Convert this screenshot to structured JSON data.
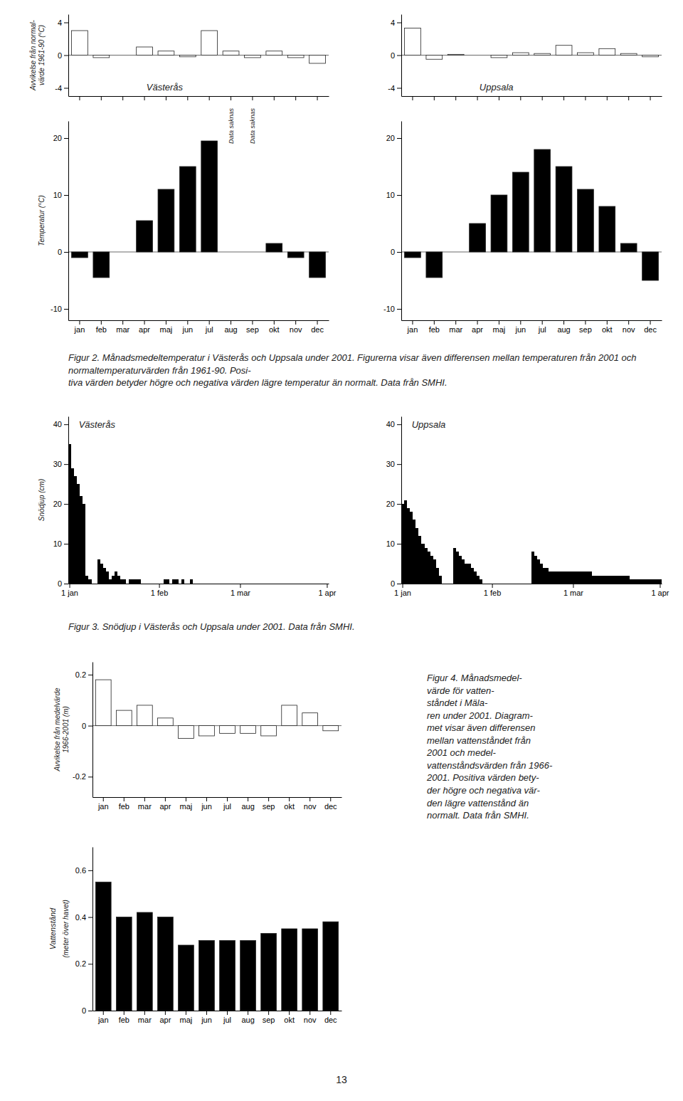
{
  "chart_data": [
    {
      "type": "bar",
      "title": "Västerås",
      "ylabel": "Avvikelse från normal-\nvärde 1961-90 (°C)",
      "categories": [
        null,
        null,
        null,
        null,
        null,
        null,
        null,
        null,
        null,
        null,
        null,
        null
      ],
      "values": [
        3.0,
        -0.3,
        0.0,
        1.0,
        0.5,
        -0.2,
        3.0,
        0.5,
        -0.3,
        0.5,
        -0.3,
        -1.0
      ],
      "color": "#ffffff",
      "ylim": [
        -5,
        5
      ],
      "yticks": [
        -4,
        0,
        4
      ]
    },
    {
      "type": "bar",
      "title": "Uppsala",
      "categories": [
        null,
        null,
        null,
        null,
        null,
        null,
        null,
        null,
        null,
        null,
        null,
        null
      ],
      "values": [
        3.3,
        -0.5,
        0.1,
        0.0,
        -0.3,
        0.3,
        0.2,
        1.2,
        0.3,
        0.8,
        0.2,
        -0.2
      ],
      "color": "#ffffff",
      "ylim": [
        -5,
        5
      ],
      "yticks": [
        -4,
        0,
        4
      ]
    },
    {
      "type": "bar",
      "ylabel": "Temperatur (°C)",
      "categories": [
        "jan",
        "feb",
        "mar",
        "apr",
        "maj",
        "jun",
        "jul",
        "aug",
        "sep",
        "okt",
        "nov",
        "dec"
      ],
      "values": [
        -1.0,
        -4.5,
        0.0,
        5.5,
        11.0,
        15.0,
        19.5,
        null,
        null,
        1.5,
        -1.0,
        -4.5
      ],
      "color": "#000000",
      "ylim": [
        -12,
        23
      ],
      "yticks": [
        -10,
        0,
        10,
        20
      ],
      "annotations": [
        {
          "text": "Data saknas",
          "x": "aug",
          "y": 19
        },
        {
          "text": "Data saknas",
          "x": "sep",
          "y": 19
        }
      ]
    },
    {
      "type": "bar",
      "categories": [
        "jan",
        "feb",
        "mar",
        "apr",
        "maj",
        "jun",
        "jul",
        "aug",
        "sep",
        "okt",
        "nov",
        "dec"
      ],
      "values": [
        -1.0,
        -4.5,
        0.0,
        5.0,
        10.0,
        14.0,
        18.0,
        15.0,
        11.0,
        8.0,
        1.5,
        -5.0
      ],
      "color": "#000000",
      "ylim": [
        -12,
        23
      ],
      "yticks": [
        -10,
        0,
        10,
        20
      ],
      "caption": "Figur 2. Månadsmedeltemperatur i Västerås och Uppsala under 2001. Figurerna visar även differensen mellan temperaturen från 2001 och normaltemperaturvärden från 1961-90. Posi-\ntiva värden betyder högre och negativa värden lägre temperatur än normalt. Data från SMHI."
    },
    {
      "type": "bar",
      "title": "Västerås",
      "ylabel": "Snödjup (cm)",
      "categories": [
        "1 jan",
        null,
        null,
        null,
        null,
        null,
        null,
        null,
        null,
        null,
        null,
        null,
        null,
        null,
        null,
        null,
        null,
        null,
        null,
        null,
        null,
        null,
        null,
        null,
        null,
        null,
        null,
        null,
        null,
        null,
        null,
        "1 feb",
        null,
        null,
        null,
        null,
        null,
        null,
        null,
        null,
        null,
        null,
        null,
        null,
        null,
        null,
        null,
        null,
        null,
        null,
        null,
        null,
        null,
        null,
        null,
        null,
        null,
        null,
        null,
        "1 mar",
        null,
        null,
        null,
        null,
        null,
        null,
        null,
        null,
        null,
        null,
        null,
        null,
        null,
        null,
        null,
        null,
        null,
        null,
        null,
        null,
        null,
        null,
        null,
        null,
        null,
        null,
        null,
        null,
        null,
        "1 apr"
      ],
      "values": [
        35,
        29,
        27,
        25,
        22,
        20,
        2,
        1,
        0,
        0,
        6,
        5,
        4,
        3,
        1,
        2,
        3,
        2,
        1,
        1,
        0,
        1,
        1,
        1,
        1,
        0,
        0,
        0,
        0,
        0,
        0,
        0,
        0,
        1,
        1,
        0,
        1,
        1,
        0,
        1,
        0,
        0,
        1,
        0,
        0,
        0,
        0,
        0,
        0,
        0,
        0,
        0,
        0,
        0,
        0,
        0,
        0,
        0,
        0,
        0,
        0,
        0,
        0,
        0,
        0,
        0,
        0,
        0,
        0,
        0,
        0,
        0,
        0,
        0,
        0,
        0,
        0,
        0,
        0,
        0,
        0,
        0,
        0,
        0,
        0,
        0,
        0,
        0,
        0,
        0
      ],
      "color": "#000000",
      "ylim": [
        0,
        42
      ],
      "yticks": [
        0,
        10,
        20,
        30,
        40
      ]
    },
    {
      "type": "bar",
      "title": "Uppsala",
      "categories": [
        "1 jan",
        null,
        null,
        null,
        null,
        null,
        null,
        null,
        null,
        null,
        null,
        null,
        null,
        null,
        null,
        null,
        null,
        null,
        null,
        null,
        null,
        null,
        null,
        null,
        null,
        null,
        null,
        null,
        null,
        null,
        null,
        "1 feb",
        null,
        null,
        null,
        null,
        null,
        null,
        null,
        null,
        null,
        null,
        null,
        null,
        null,
        null,
        null,
        null,
        null,
        null,
        null,
        null,
        null,
        null,
        null,
        null,
        null,
        null,
        null,
        "1 mar",
        null,
        null,
        null,
        null,
        null,
        null,
        null,
        null,
        null,
        null,
        null,
        null,
        null,
        null,
        null,
        null,
        null,
        null,
        null,
        null,
        null,
        null,
        null,
        null,
        null,
        null,
        null,
        null,
        null,
        "1 apr"
      ],
      "values": [
        20,
        21,
        19,
        18,
        16,
        14,
        12,
        10,
        9,
        8,
        7,
        6,
        4,
        2,
        0,
        0,
        0,
        0,
        9,
        8,
        7,
        6,
        5,
        5,
        4,
        3,
        2,
        1,
        0,
        0,
        0,
        0,
        0,
        0,
        0,
        0,
        0,
        0,
        0,
        0,
        0,
        0,
        0,
        0,
        0,
        8,
        7,
        6,
        5,
        4,
        4,
        3,
        3,
        3,
        3,
        3,
        3,
        3,
        3,
        3,
        3,
        3,
        3,
        3,
        3,
        3,
        2,
        2,
        2,
        2,
        2,
        2,
        2,
        2,
        2,
        2,
        2,
        2,
        2,
        1,
        1,
        1,
        1,
        1,
        1,
        1,
        1,
        1,
        1,
        1
      ],
      "color": "#000000",
      "ylim": [
        0,
        42
      ],
      "yticks": [
        0,
        10,
        20,
        30,
        40
      ],
      "caption": "Figur 3. Snödjup i Västerås och Uppsala under 2001. Data från SMHI."
    },
    {
      "type": "bar",
      "ylabel": "Avvikelse från medelvärde\n1966-2001 (m)",
      "categories": [
        "jan",
        "feb",
        "mar",
        "apr",
        "maj",
        "jun",
        "jul",
        "aug",
        "sep",
        "okt",
        "nov",
        "dec"
      ],
      "values": [
        0.18,
        0.06,
        0.08,
        0.03,
        -0.05,
        -0.04,
        -0.03,
        -0.03,
        -0.04,
        0.08,
        0.05,
        -0.02
      ],
      "color": "#ffffff",
      "ylim": [
        -0.28,
        0.25
      ],
      "yticks": [
        -0.2,
        0,
        0.2
      ]
    },
    {
      "type": "bar",
      "ylabel": "(meter över havet)",
      "categories": [
        "jan",
        "feb",
        "mar",
        "apr",
        "maj",
        "jun",
        "jul",
        "aug",
        "sep",
        "okt",
        "nov",
        "dec"
      ],
      "values": [
        0.55,
        0.4,
        0.42,
        0.4,
        0.28,
        0.3,
        0.3,
        0.3,
        0.33,
        0.35,
        0.35,
        0.38
      ],
      "color": "#000000",
      "ylim": [
        0,
        0.7
      ],
      "yticks": [
        0,
        0.2,
        0.4,
        0.6
      ],
      "annotations": [
        {
          "text": "Vattenstånd"
        }
      ],
      "caption": "Figur 4. Månadsmedel-\nvärde för vatten-\nståndet i Mäla-\nren under 2001. Diagram-\nmet visar även differensen\nmellan vattenståndet från\n2001 och medel-\nvattenståndsvärden från 1966-\n2001. Positiva värden bety-\nder högre och negativa vär-\nden lägre vattenstånd än\nnormalt. Data från SMHI."
    }
  ],
  "page_number": 13
}
